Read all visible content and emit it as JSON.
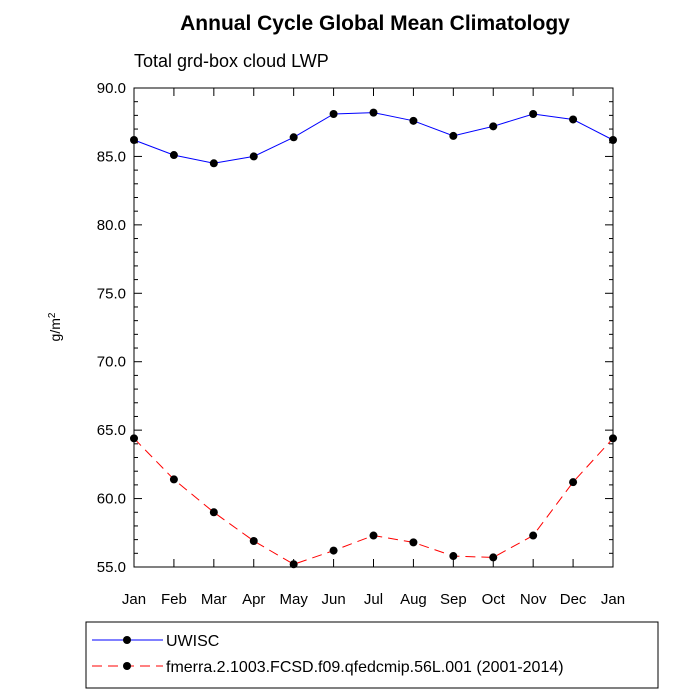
{
  "chart_data": {
    "type": "line",
    "title": "Annual Cycle Global Mean Climatology",
    "subtitle": "Total grd-box cloud LWP",
    "ylabel": "g/m",
    "ylabel_sup": "2",
    "xlabel": "",
    "categories": [
      "Jan",
      "Feb",
      "Mar",
      "Apr",
      "May",
      "Jun",
      "Jul",
      "Aug",
      "Sep",
      "Oct",
      "Nov",
      "Dec",
      "Jan"
    ],
    "ylim": [
      55.0,
      90.0
    ],
    "yticks": [
      "55.0",
      "60.0",
      "65.0",
      "70.0",
      "75.0",
      "80.0",
      "85.0",
      "90.0"
    ],
    "grid": false,
    "legend_position": "bottom",
    "series": [
      {
        "name": "UWISC",
        "color": "#0000ff",
        "dash": "solid",
        "values": [
          86.2,
          85.1,
          84.5,
          85.0,
          86.4,
          88.1,
          88.2,
          87.6,
          86.5,
          87.2,
          88.1,
          87.7,
          86.2
        ]
      },
      {
        "name": "fmerra.2.1003.FCSD.f09.qfedcmip.56L.001 (2001-2014)",
        "color": "#ff0000",
        "dash": "dashed",
        "values": [
          64.4,
          61.4,
          59.0,
          56.9,
          55.2,
          56.2,
          57.3,
          56.8,
          55.8,
          55.7,
          57.3,
          61.2,
          64.4
        ]
      }
    ]
  }
}
